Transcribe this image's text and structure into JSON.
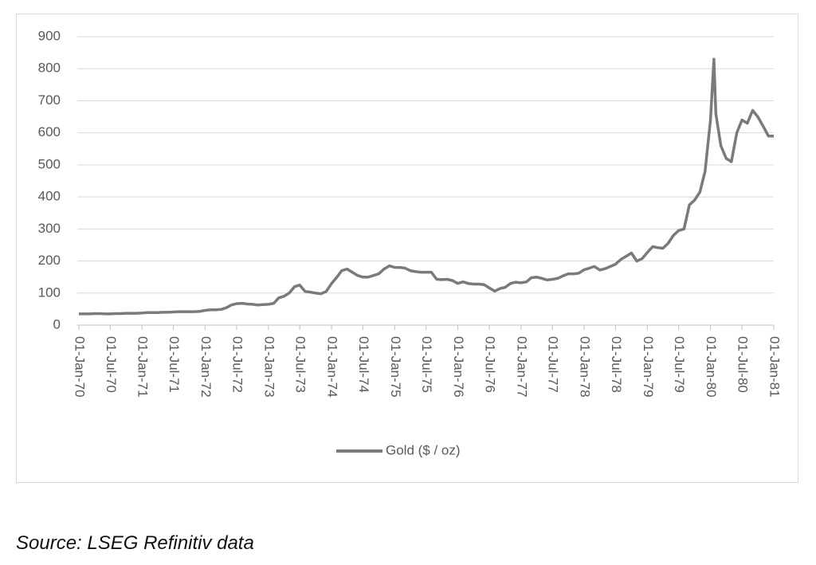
{
  "chart_data": {
    "type": "line",
    "x": [
      "1970-01-01",
      "1970-02-01",
      "1970-03-01",
      "1970-04-01",
      "1970-05-01",
      "1970-06-01",
      "1970-07-01",
      "1970-08-01",
      "1970-09-01",
      "1970-10-01",
      "1970-11-01",
      "1970-12-01",
      "1971-01-01",
      "1971-02-01",
      "1971-03-01",
      "1971-04-01",
      "1971-05-01",
      "1971-06-01",
      "1971-07-01",
      "1971-08-01",
      "1971-09-01",
      "1971-10-01",
      "1971-11-01",
      "1971-12-01",
      "1972-01-01",
      "1972-02-01",
      "1972-03-01",
      "1972-04-01",
      "1972-05-01",
      "1972-06-01",
      "1972-07-01",
      "1972-08-01",
      "1972-09-01",
      "1972-10-01",
      "1972-11-01",
      "1972-12-01",
      "1973-01-01",
      "1973-02-01",
      "1973-03-01",
      "1973-04-01",
      "1973-05-01",
      "1973-06-01",
      "1973-07-01",
      "1973-08-01",
      "1973-09-01",
      "1973-10-01",
      "1973-11-01",
      "1973-12-01",
      "1974-01-01",
      "1974-02-01",
      "1974-03-01",
      "1974-04-01",
      "1974-05-01",
      "1974-06-01",
      "1974-07-01",
      "1974-08-01",
      "1974-09-01",
      "1974-10-01",
      "1974-11-01",
      "1974-12-01",
      "1975-01-01",
      "1975-02-01",
      "1975-03-01",
      "1975-04-01",
      "1975-05-01",
      "1975-06-01",
      "1975-07-01",
      "1975-08-01",
      "1975-09-01",
      "1975-10-01",
      "1975-11-01",
      "1975-12-01",
      "1976-01-01",
      "1976-02-01",
      "1976-03-01",
      "1976-04-01",
      "1976-05-01",
      "1976-06-01",
      "1976-07-01",
      "1976-08-01",
      "1976-09-01",
      "1976-10-01",
      "1976-11-01",
      "1976-12-01",
      "1977-01-01",
      "1977-02-01",
      "1977-03-01",
      "1977-04-01",
      "1977-05-01",
      "1977-06-01",
      "1977-07-01",
      "1977-08-01",
      "1977-09-01",
      "1977-10-01",
      "1977-11-01",
      "1977-12-01",
      "1978-01-01",
      "1978-02-01",
      "1978-03-01",
      "1978-04-01",
      "1978-05-01",
      "1978-06-01",
      "1978-07-01",
      "1978-08-01",
      "1978-09-01",
      "1978-10-01",
      "1978-11-01",
      "1978-12-01",
      "1979-01-01",
      "1979-02-01",
      "1979-03-01",
      "1979-04-01",
      "1979-05-01",
      "1979-06-01",
      "1979-07-01",
      "1979-08-01",
      "1979-09-01",
      "1979-10-01",
      "1979-11-01",
      "1979-12-01",
      "1980-01-01",
      "1980-01-21",
      "1980-02-01",
      "1980-03-01",
      "1980-04-01",
      "1980-05-01",
      "1980-06-01",
      "1980-07-01",
      "1980-08-01",
      "1980-09-01",
      "1980-10-01",
      "1980-11-01",
      "1980-12-01",
      "1981-01-01"
    ],
    "series": [
      {
        "name": "Gold ($ / oz)",
        "color": "#7a7a7a",
        "values": [
          35,
          35,
          35,
          36,
          36,
          35,
          35,
          36,
          36,
          37,
          37,
          37,
          38,
          39,
          39,
          39,
          40,
          40,
          41,
          42,
          42,
          42,
          42,
          43,
          46,
          48,
          48,
          49,
          54,
          63,
          67,
          68,
          66,
          65,
          63,
          64,
          65,
          68,
          85,
          90,
          100,
          120,
          125,
          105,
          103,
          100,
          98,
          105,
          130,
          150,
          170,
          175,
          165,
          155,
          150,
          150,
          155,
          160,
          175,
          185,
          180,
          180,
          178,
          170,
          167,
          165,
          165,
          165,
          143,
          142,
          143,
          139,
          130,
          135,
          130,
          128,
          128,
          126,
          116,
          106,
          114,
          118,
          130,
          134,
          132,
          135,
          148,
          150,
          146,
          141,
          143,
          146,
          154,
          160,
          160,
          162,
          173,
          178,
          183,
          172,
          176,
          183,
          190,
          205,
          215,
          225,
          200,
          207,
          227,
          245,
          242,
          240,
          255,
          280,
          295,
          300,
          375,
          390,
          415,
          480,
          640,
          830,
          660,
          560,
          520,
          510,
          600,
          640,
          630,
          670,
          650,
          620,
          590,
          590
        ]
      }
    ],
    "xlim": [
      "1970-01-01",
      "1981-01-01"
    ],
    "xticks": [
      {
        "value": "1970-01-01",
        "label": "01-Jan-70"
      },
      {
        "value": "1970-07-01",
        "label": "01-Jul-70"
      },
      {
        "value": "1971-01-01",
        "label": "01-Jan-71"
      },
      {
        "value": "1971-07-01",
        "label": "01-Jul-71"
      },
      {
        "value": "1972-01-01",
        "label": "01-Jan-72"
      },
      {
        "value": "1972-07-01",
        "label": "01-Jul-72"
      },
      {
        "value": "1973-01-01",
        "label": "01-Jan-73"
      },
      {
        "value": "1973-07-01",
        "label": "01-Jul-73"
      },
      {
        "value": "1974-01-01",
        "label": "01-Jan-74"
      },
      {
        "value": "1974-07-01",
        "label": "01-Jul-74"
      },
      {
        "value": "1975-01-01",
        "label": "01-Jan-75"
      },
      {
        "value": "1975-07-01",
        "label": "01-Jul-75"
      },
      {
        "value": "1976-01-01",
        "label": "01-Jan-76"
      },
      {
        "value": "1976-07-01",
        "label": "01-Jul-76"
      },
      {
        "value": "1977-01-01",
        "label": "01-Jan-77"
      },
      {
        "value": "1977-07-01",
        "label": "01-Jul-77"
      },
      {
        "value": "1978-01-01",
        "label": "01-Jan-78"
      },
      {
        "value": "1978-07-01",
        "label": "01-Jul-78"
      },
      {
        "value": "1979-01-01",
        "label": "01-Jan-79"
      },
      {
        "value": "1979-07-01",
        "label": "01-Jul-79"
      },
      {
        "value": "1980-01-01",
        "label": "01-Jan-80"
      },
      {
        "value": "1980-07-01",
        "label": "01-Jul-80"
      },
      {
        "value": "1981-01-01",
        "label": "01-Jan-81"
      }
    ],
    "ylim": [
      0,
      900
    ],
    "yticks": [
      0,
      100,
      200,
      300,
      400,
      500,
      600,
      700,
      800,
      900
    ],
    "grid": true,
    "legend": "bottom",
    "source": "Source: LSEG Refinitiv data"
  }
}
